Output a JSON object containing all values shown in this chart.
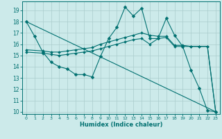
{
  "xlabel": "Humidex (Indice chaleur)",
  "bg_color": "#cceaea",
  "grid_color": "#aacccc",
  "line_color": "#007070",
  "xlim": [
    -0.5,
    23.5
  ],
  "ylim": [
    9.8,
    19.8
  ],
  "yticks": [
    10,
    11,
    12,
    13,
    14,
    15,
    16,
    17,
    18,
    19
  ],
  "xticks": [
    0,
    1,
    2,
    3,
    4,
    5,
    6,
    7,
    8,
    9,
    10,
    11,
    12,
    13,
    14,
    15,
    16,
    17,
    18,
    19,
    20,
    21,
    22,
    23
  ],
  "lines": [
    {
      "x": [
        0,
        1,
        2,
        3,
        4,
        5,
        6,
        7,
        8,
        9,
        10,
        11,
        12,
        13,
        14,
        15,
        16,
        17,
        18,
        19,
        20,
        21,
        22,
        23
      ],
      "y": [
        18.0,
        16.7,
        15.3,
        14.4,
        14.0,
        13.8,
        13.3,
        13.3,
        13.1,
        14.9,
        16.5,
        17.5,
        19.3,
        18.5,
        19.2,
        16.5,
        16.5,
        18.3,
        16.8,
        15.8,
        13.7,
        12.1,
        10.1,
        10.0
      ],
      "marker": "D",
      "markersize": 2.5
    },
    {
      "x": [
        0,
        23
      ],
      "y": [
        18.0,
        10.0
      ],
      "marker": null,
      "markersize": 0
    },
    {
      "x": [
        0,
        2,
        3,
        4,
        5,
        6,
        7,
        8,
        9,
        10,
        11,
        12,
        13,
        14,
        15,
        16,
        17,
        18,
        19,
        20,
        21,
        22,
        23
      ],
      "y": [
        15.5,
        15.4,
        15.3,
        15.3,
        15.4,
        15.5,
        15.6,
        15.7,
        16.0,
        16.2,
        16.4,
        16.6,
        16.8,
        17.0,
        16.8,
        16.7,
        16.7,
        15.9,
        15.9,
        15.8,
        15.8,
        15.8,
        10.0
      ],
      "marker": "D",
      "markersize": 2.0
    },
    {
      "x": [
        0,
        2,
        3,
        4,
        5,
        6,
        7,
        8,
        9,
        10,
        11,
        12,
        13,
        14,
        15,
        16,
        17,
        18,
        19,
        20,
        21,
        22,
        23
      ],
      "y": [
        15.3,
        15.2,
        15.1,
        15.0,
        15.1,
        15.2,
        15.3,
        15.4,
        15.6,
        15.8,
        16.0,
        16.2,
        16.4,
        16.5,
        16.0,
        16.5,
        16.6,
        15.8,
        15.8,
        15.8,
        15.8,
        15.8,
        10.0
      ],
      "marker": "D",
      "markersize": 2.0
    }
  ]
}
